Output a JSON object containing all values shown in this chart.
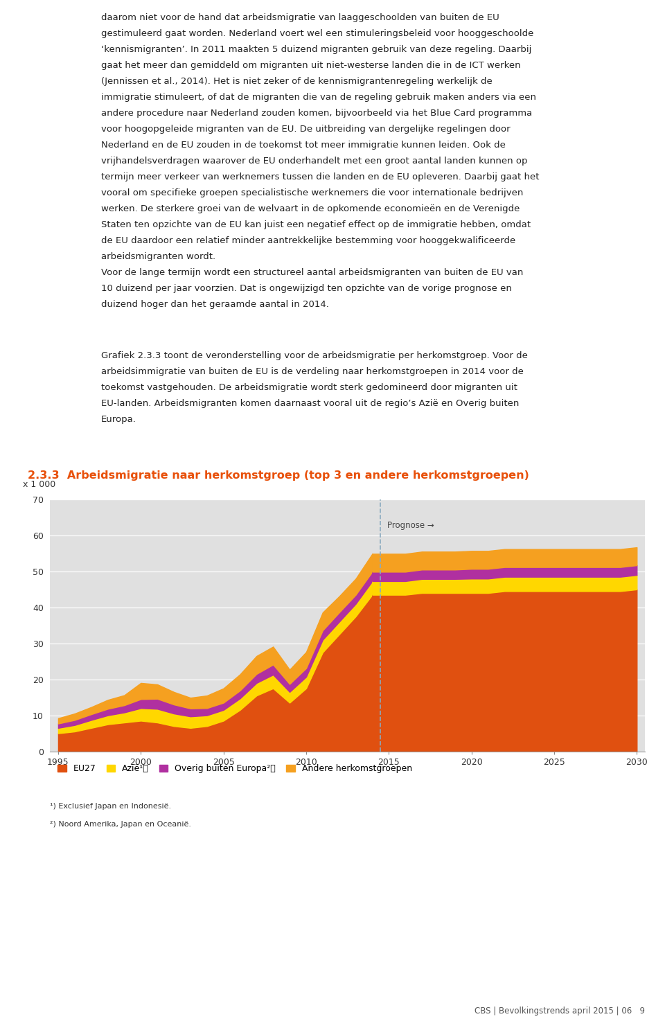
{
  "title": "2.3.3  Arbeidsmigratie naar herkomstgroep (top 3 en andere herkomstgroepen)",
  "title_color": "#E8500A",
  "ylabel": "x 1 000",
  "ylim": [
    0,
    70
  ],
  "yticks": [
    0,
    10,
    20,
    30,
    40,
    50,
    60,
    70
  ],
  "xlim": [
    1994.5,
    2030.5
  ],
  "xticks": [
    1995,
    2000,
    2005,
    2010,
    2015,
    2020,
    2025,
    2030
  ],
  "prognose_x": 2014.5,
  "prognose_label": "Prognose →",
  "plot_bg": "#E0E0E0",
  "years_hist": [
    1995,
    1996,
    1997,
    1998,
    1999,
    2000,
    2001,
    2002,
    2003,
    2004,
    2005,
    2006,
    2007,
    2008,
    2009,
    2010,
    2011,
    2012,
    2013,
    2014
  ],
  "years_prog": [
    2014,
    2015,
    2016,
    2017,
    2018,
    2019,
    2020,
    2021,
    2022,
    2023,
    2024,
    2025,
    2026,
    2027,
    2028,
    2029,
    2030
  ],
  "eu27_hist": [
    5.0,
    5.5,
    6.5,
    7.5,
    8.0,
    8.5,
    8.0,
    7.0,
    6.5,
    7.0,
    8.5,
    11.5,
    15.5,
    17.5,
    13.5,
    17.5,
    27.5,
    32.5,
    37.5,
    43.5
  ],
  "azie_hist": [
    1.5,
    1.8,
    2.2,
    2.5,
    2.8,
    3.5,
    3.8,
    3.5,
    3.2,
    3.0,
    3.0,
    3.2,
    3.5,
    3.8,
    3.0,
    3.2,
    3.5,
    3.5,
    3.5,
    3.8
  ],
  "overig_hist": [
    1.2,
    1.4,
    1.6,
    1.8,
    2.0,
    2.5,
    2.8,
    2.5,
    2.2,
    2.0,
    2.0,
    2.2,
    2.5,
    2.8,
    2.2,
    2.4,
    2.6,
    2.6,
    2.5,
    2.6
  ],
  "andere_hist": [
    1.5,
    1.8,
    2.0,
    2.5,
    2.8,
    4.5,
    4.0,
    3.5,
    3.0,
    3.5,
    4.0,
    4.5,
    5.0,
    5.0,
    4.0,
    4.5,
    5.0,
    4.5,
    4.5,
    5.0
  ],
  "eu27_prog": [
    43.5,
    43.5,
    43.5,
    44.0,
    44.0,
    44.0,
    44.0,
    44.0,
    44.5,
    44.5,
    44.5,
    44.5,
    44.5,
    44.5,
    44.5,
    44.5,
    45.0
  ],
  "azie_prog": [
    3.8,
    3.8,
    3.8,
    3.9,
    3.9,
    3.9,
    4.0,
    4.0,
    4.0,
    4.0,
    4.0,
    4.0,
    4.0,
    4.0,
    4.0,
    4.0,
    4.0
  ],
  "overig_prog": [
    2.6,
    2.6,
    2.6,
    2.6,
    2.6,
    2.6,
    2.7,
    2.7,
    2.7,
    2.7,
    2.7,
    2.7,
    2.7,
    2.7,
    2.7,
    2.7,
    2.7
  ],
  "andere_prog": [
    5.0,
    5.0,
    5.0,
    5.0,
    5.0,
    5.0,
    5.0,
    5.0,
    5.0,
    5.0,
    5.0,
    5.0,
    5.0,
    5.0,
    5.0,
    5.0,
    5.0
  ],
  "color_eu27": "#E05010",
  "color_azie": "#FFD700",
  "color_overig": "#B030A0",
  "color_andere": "#F5A020",
  "footer_text": "CBS | Bevolkingstrends april 2015 | 06   9"
}
